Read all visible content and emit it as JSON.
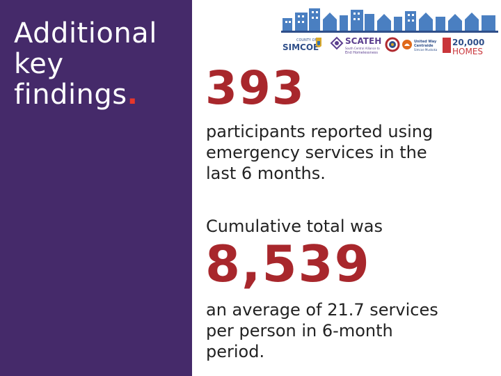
{
  "sidebar": {
    "heading_lines": [
      "Additional",
      "key",
      "findings"
    ],
    "heading_period": ".",
    "background": "#452a6a",
    "period_color": "#e8372a"
  },
  "logos": {
    "county": "COUNTY OF",
    "simcoe": "SIMCOE",
    "scateh": "SCATEH",
    "scateh_sub": "South Central Alliance to End Homelessness",
    "united_way": "United Way",
    "united_way_2": "Centraide",
    "united_way_3": "Simcoe Muskoka",
    "homes_1": "20,000",
    "homes_2": "HOMES"
  },
  "stat1": {
    "number": "393",
    "text_lines": [
      "participants reported using",
      "emergency services in the",
      "last 6 months."
    ]
  },
  "stat2": {
    "intro": "Cumulative total was",
    "number": "8,539",
    "text_lines": [
      "an average of 21.7 services",
      "per person in 6-month",
      "period."
    ]
  },
  "colors": {
    "accent": "#a8272c",
    "text": "#222222",
    "skyline": "#4a7fc1"
  }
}
